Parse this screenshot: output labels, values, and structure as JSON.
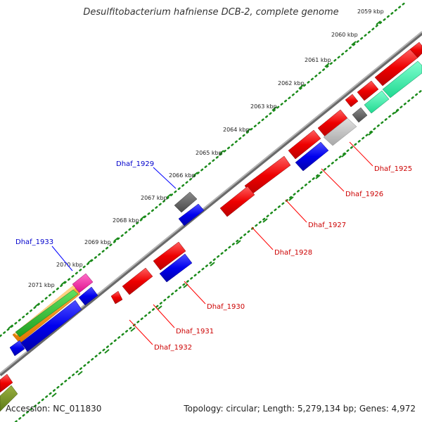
{
  "title": "Desulfitobacterium hafniense DCB-2, complete genome",
  "footer": {
    "accession": "Accession: NC_011830",
    "summary": "Topology: circular; Length: 5,279,134 bp; Genes: 4,972"
  },
  "colors": {
    "backbone": "#8a8a8a",
    "ruler_dots": "#1a8a1a",
    "forward_label": "#0000cc",
    "reverse_label": "#cc0000",
    "leader_forward": "#0000ff",
    "leader_reverse": "#ff0000"
  },
  "scale": {
    "unit": "kbp",
    "ticks": [
      "2059 kbp",
      "2060 kbp",
      "2061 kbp",
      "2062 kbp",
      "2063 kbp",
      "2064 kbp",
      "2065 kbp",
      "2066 kbp",
      "2067 kbp",
      "2068 kbp",
      "2069 kbp",
      "2070 kbp",
      "2071 kbp"
    ]
  },
  "gene_labels": {
    "forward": [
      "Dhaf_1929",
      "Dhaf_1933"
    ],
    "reverse": [
      "Dhaf_1925",
      "Dhaf_1926",
      "Dhaf_1927",
      "Dhaf_1928",
      "Dhaf_1930",
      "Dhaf_1931",
      "Dhaf_1932"
    ]
  },
  "feature_colors": [
    "red",
    "blue",
    "grey",
    "dark-grey",
    "orange",
    "green",
    "pink",
    "olive",
    "aquamarine"
  ]
}
